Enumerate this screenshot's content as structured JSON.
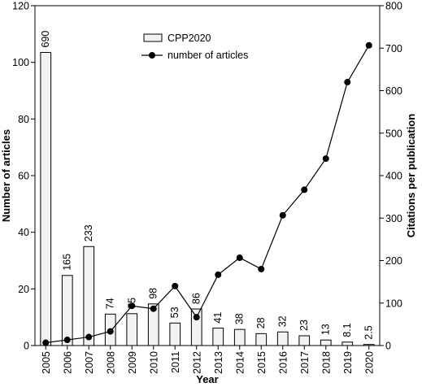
{
  "chart_data": {
    "type": "bar+line",
    "title": "",
    "xlabel": "Year",
    "ylabel_left": "Number of articles",
    "ylabel_right": "Citations per publication",
    "categories": [
      "2005",
      "2006",
      "2007",
      "2008",
      "2009",
      "2010",
      "2011",
      "2012",
      "2013",
      "2014",
      "2015",
      "2016",
      "2017",
      "2018",
      "2019",
      "2020"
    ],
    "ylim_left": [
      0,
      120
    ],
    "yticks_left": [
      "0",
      "20",
      "40",
      "60",
      "80",
      "100",
      "120"
    ],
    "ylim_right": [
      0,
      800
    ],
    "yticks_right": [
      "0",
      "100",
      "200",
      "300",
      "400",
      "500",
      "600",
      "700",
      "800"
    ],
    "series": [
      {
        "name": "CPP2020",
        "kind": "bar",
        "axis": "right",
        "values": [
          690,
          165,
          233,
          74,
          75,
          98,
          53,
          86,
          41,
          38,
          28,
          32,
          23,
          13,
          8.1,
          2.5
        ],
        "labels": [
          "690",
          "165",
          "233",
          "74",
          "75",
          "98",
          "53",
          "86",
          "41",
          "38",
          "28",
          "32",
          "23",
          "13",
          "8.1",
          "2.5"
        ],
        "color": "#f2f2f2"
      },
      {
        "name": "number of articles",
        "kind": "line",
        "axis": "left",
        "values": [
          1,
          2,
          3,
          5,
          14,
          13,
          21,
          10,
          25,
          31,
          27,
          46,
          55,
          66,
          93,
          106
        ],
        "color": "#000000"
      }
    ],
    "legend_position": "top-center",
    "grid": false
  }
}
